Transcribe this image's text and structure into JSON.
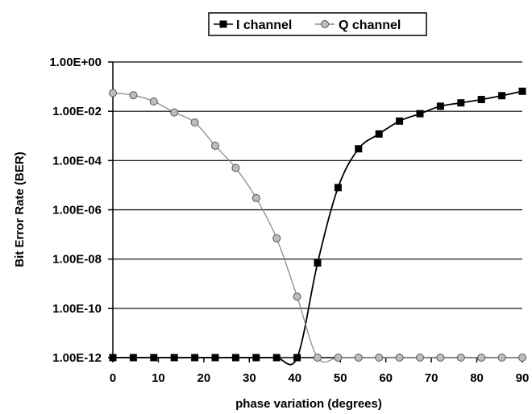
{
  "chart_data": {
    "type": "line",
    "title": "",
    "xlabel": "phase variation (degrees)",
    "ylabel": "Bit Error Rate (BER)",
    "y_scale": "log10",
    "xlim": [
      0,
      90
    ],
    "ylim": [
      1e-12,
      1
    ],
    "x_ticks": [
      "0",
      "10",
      "20",
      "30",
      "40",
      "50",
      "60",
      "70",
      "80",
      "90"
    ],
    "y_ticks": [
      "1.00E-12",
      "1.00E-10",
      "1.00E-08",
      "1.00E-06",
      "1.00E-04",
      "1.00E-02",
      "1.00E+00"
    ],
    "grid": "horizontal",
    "legend_position": "top",
    "x": [
      0,
      4.5,
      9,
      13.5,
      18,
      22.5,
      27,
      31.5,
      36,
      40.5,
      45,
      49.5,
      54,
      58.5,
      63,
      67.5,
      72,
      76.5,
      81,
      85.5,
      90
    ],
    "series": [
      {
        "name": "I channel",
        "marker": "square",
        "color": "#000000",
        "values": [
          1e-12,
          1e-12,
          1e-12,
          1e-12,
          1e-12,
          1e-12,
          1e-12,
          1e-12,
          1e-12,
          1e-12,
          7e-09,
          8e-06,
          0.0003,
          0.0012,
          0.004,
          0.008,
          0.016,
          0.022,
          0.03,
          0.043,
          0.065
        ]
      },
      {
        "name": "Q channel",
        "marker": "circle",
        "color": "#8c8c8c",
        "values": [
          0.055,
          0.045,
          0.025,
          0.009,
          0.0035,
          0.0004,
          5e-05,
          3e-06,
          7e-08,
          3e-10,
          1e-12,
          1e-12,
          1e-12,
          1e-12,
          1e-12,
          1e-12,
          1e-12,
          1e-12,
          1e-12,
          1e-12,
          1e-12
        ]
      }
    ]
  }
}
